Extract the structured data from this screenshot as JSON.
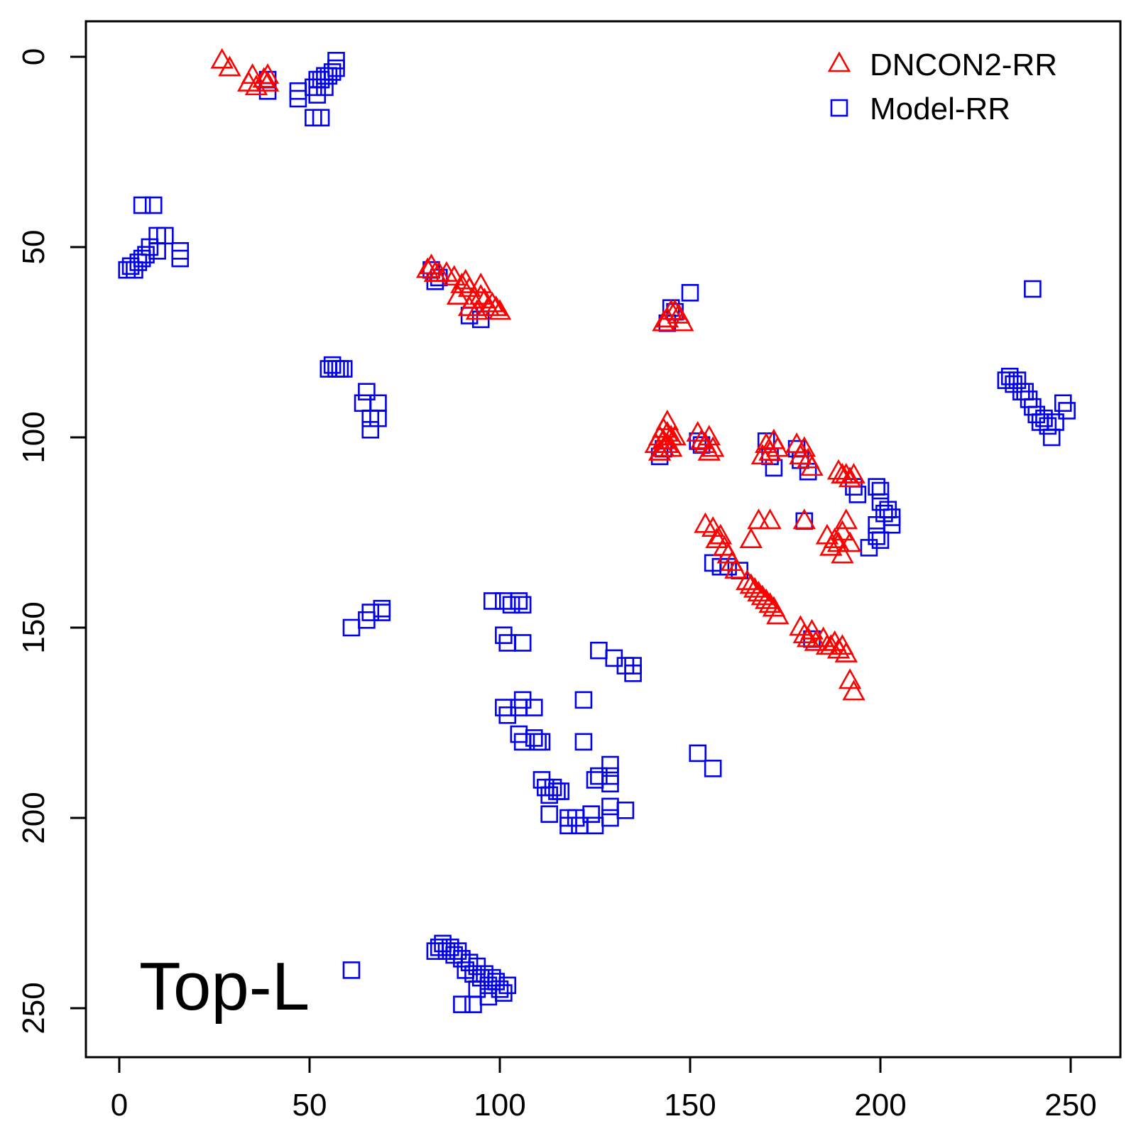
{
  "colors": {
    "dncon": "#ff0000",
    "model": "#0000ee",
    "axis": "#000000"
  },
  "legend": {
    "placement": "top-right",
    "items": [
      {
        "label": "DNCON2-RR",
        "marker": "triangle",
        "color": "#ff0000"
      },
      {
        "label": "Model-RR",
        "marker": "square",
        "color": "#0000ee"
      }
    ]
  },
  "chart_data": {
    "type": "scatter",
    "title": "",
    "xlabel": "",
    "ylabel": "",
    "annotation": "Top-L",
    "xlim": [
      -9,
      263
    ],
    "ylim": [
      -9,
      263
    ],
    "y_reversed": true,
    "grid": false,
    "x_ticks": [
      0,
      50,
      100,
      150,
      200,
      250
    ],
    "y_ticks": [
      0,
      50,
      100,
      150,
      200,
      250
    ],
    "series": [
      {
        "name": "DNCON2-RR",
        "marker": "triangle",
        "color": "#ff0000",
        "points": [
          [
            27,
            1
          ],
          [
            29,
            3
          ],
          [
            34,
            7
          ],
          [
            35,
            5
          ],
          [
            36,
            8
          ],
          [
            38,
            6
          ],
          [
            39,
            5
          ],
          [
            39,
            7
          ],
          [
            81,
            56
          ],
          [
            82,
            55
          ],
          [
            83,
            57
          ],
          [
            84,
            57
          ],
          [
            86,
            57
          ],
          [
            88,
            58
          ],
          [
            89,
            63
          ],
          [
            90,
            60
          ],
          [
            91,
            59
          ],
          [
            92,
            61
          ],
          [
            92,
            66
          ],
          [
            93,
            64
          ],
          [
            94,
            67
          ],
          [
            95,
            60
          ],
          [
            95,
            63
          ],
          [
            96,
            64
          ],
          [
            97,
            66
          ],
          [
            98,
            65
          ],
          [
            99,
            66
          ],
          [
            100,
            67
          ],
          [
            143,
            70
          ],
          [
            144,
            69
          ],
          [
            145,
            67
          ],
          [
            146,
            67
          ],
          [
            147,
            68
          ],
          [
            148,
            70
          ],
          [
            141,
            102
          ],
          [
            142,
            100
          ],
          [
            142,
            104
          ],
          [
            143,
            98
          ],
          [
            143,
            101
          ],
          [
            143,
            103
          ],
          [
            144,
            96
          ],
          [
            144,
            99
          ],
          [
            144,
            102
          ],
          [
            145,
            100
          ],
          [
            145,
            103
          ],
          [
            146,
            100
          ],
          [
            152,
            99
          ],
          [
            153,
            101
          ],
          [
            154,
            102
          ],
          [
            155,
            100
          ],
          [
            155,
            104
          ],
          [
            156,
            103
          ],
          [
            169,
            105
          ],
          [
            170,
            102
          ],
          [
            171,
            104
          ],
          [
            172,
            101
          ],
          [
            173,
            103
          ],
          [
            178,
            102
          ],
          [
            179,
            105
          ],
          [
            180,
            103
          ],
          [
            181,
            106
          ],
          [
            182,
            108
          ],
          [
            189,
            109
          ],
          [
            190,
            110
          ],
          [
            191,
            110
          ],
          [
            192,
            111
          ],
          [
            193,
            110
          ],
          [
            154,
            123
          ],
          [
            156,
            124
          ],
          [
            157,
            127
          ],
          [
            158,
            126
          ],
          [
            159,
            129
          ],
          [
            160,
            131
          ],
          [
            161,
            133
          ],
          [
            162,
            135
          ],
          [
            165,
            138
          ],
          [
            166,
            139
          ],
          [
            167,
            140
          ],
          [
            168,
            141
          ],
          [
            169,
            142
          ],
          [
            170,
            143
          ],
          [
            171,
            144
          ],
          [
            172,
            145
          ],
          [
            173,
            147
          ],
          [
            166,
            127
          ],
          [
            168,
            122
          ],
          [
            171,
            122
          ],
          [
            180,
            122
          ],
          [
            186,
            126
          ],
          [
            187,
            129
          ],
          [
            188,
            127
          ],
          [
            189,
            128
          ],
          [
            190,
            125
          ],
          [
            190,
            131
          ],
          [
            191,
            122
          ],
          [
            192,
            128
          ],
          [
            179,
            150
          ],
          [
            180,
            152
          ],
          [
            181,
            153
          ],
          [
            182,
            151
          ],
          [
            183,
            154
          ],
          [
            185,
            153
          ],
          [
            186,
            155
          ],
          [
            187,
            155
          ],
          [
            188,
            154
          ],
          [
            189,
            156
          ],
          [
            190,
            155
          ],
          [
            191,
            157
          ],
          [
            192,
            164
          ],
          [
            193,
            167
          ]
        ]
      },
      {
        "name": "Model-RR",
        "marker": "square",
        "color": "#0000ee",
        "points": [
          [
            39,
            6
          ],
          [
            39,
            9
          ],
          [
            47,
            9
          ],
          [
            47,
            11
          ],
          [
            51,
            8
          ],
          [
            52,
            6
          ],
          [
            52,
            10
          ],
          [
            53,
            6
          ],
          [
            54,
            8
          ],
          [
            54,
            5
          ],
          [
            55,
            5
          ],
          [
            56,
            4
          ],
          [
            57,
            3
          ],
          [
            57,
            1
          ],
          [
            51,
            16
          ],
          [
            53,
            16
          ],
          [
            6,
            39
          ],
          [
            9,
            39
          ],
          [
            10,
            47
          ],
          [
            12,
            47
          ],
          [
            8,
            50
          ],
          [
            10,
            51
          ],
          [
            7,
            52
          ],
          [
            6,
            53
          ],
          [
            5,
            54
          ],
          [
            3,
            55
          ],
          [
            4,
            56
          ],
          [
            2,
            56
          ],
          [
            16,
            51
          ],
          [
            16,
            53
          ],
          [
            82,
            56
          ],
          [
            83,
            59
          ],
          [
            84,
            58
          ],
          [
            92,
            68
          ],
          [
            95,
            69
          ],
          [
            144,
            70
          ],
          [
            145,
            66
          ],
          [
            146,
            67
          ],
          [
            150,
            62
          ],
          [
            55,
            82
          ],
          [
            56,
            81
          ],
          [
            57,
            82
          ],
          [
            58,
            82
          ],
          [
            59,
            82
          ],
          [
            64,
            91
          ],
          [
            65,
            88
          ],
          [
            66,
            95
          ],
          [
            66,
            98
          ],
          [
            68,
            91
          ],
          [
            68,
            95
          ],
          [
            233,
            85
          ],
          [
            234,
            84
          ],
          [
            235,
            86
          ],
          [
            236,
            85
          ],
          [
            237,
            88
          ],
          [
            238,
            88
          ],
          [
            239,
            90
          ],
          [
            240,
            92
          ],
          [
            241,
            94
          ],
          [
            242,
            96
          ],
          [
            243,
            95
          ],
          [
            244,
            97
          ],
          [
            245,
            100
          ],
          [
            246,
            96
          ],
          [
            248,
            91
          ],
          [
            249,
            93
          ],
          [
            240,
            61
          ],
          [
            142,
            105
          ],
          [
            143,
            103
          ],
          [
            152,
            101
          ],
          [
            153,
            102
          ],
          [
            170,
            101
          ],
          [
            171,
            105
          ],
          [
            172,
            108
          ],
          [
            178,
            103
          ],
          [
            179,
            106
          ],
          [
            181,
            109
          ],
          [
            193,
            113
          ],
          [
            194,
            115
          ],
          [
            199,
            113
          ],
          [
            200,
            114
          ],
          [
            200,
            117
          ],
          [
            201,
            120
          ],
          [
            202,
            119
          ],
          [
            203,
            121
          ],
          [
            203,
            123
          ],
          [
            199,
            123
          ],
          [
            200,
            127
          ],
          [
            197,
            129
          ],
          [
            199,
            126
          ],
          [
            180,
            122
          ],
          [
            156,
            133
          ],
          [
            158,
            134
          ],
          [
            160,
            134
          ],
          [
            163,
            135
          ],
          [
            61,
            150
          ],
          [
            65,
            148
          ],
          [
            66,
            146
          ],
          [
            69,
            146
          ],
          [
            69,
            145
          ],
          [
            98,
            143
          ],
          [
            101,
            143
          ],
          [
            103,
            144
          ],
          [
            105,
            143
          ],
          [
            106,
            144
          ],
          [
            101,
            152
          ],
          [
            102,
            154
          ],
          [
            106,
            154
          ],
          [
            126,
            156
          ],
          [
            130,
            158
          ],
          [
            133,
            160
          ],
          [
            135,
            160
          ],
          [
            135,
            162
          ],
          [
            182,
            153
          ],
          [
            101,
            171
          ],
          [
            102,
            173
          ],
          [
            105,
            171
          ],
          [
            106,
            169
          ],
          [
            109,
            171
          ],
          [
            122,
            169
          ],
          [
            105,
            178
          ],
          [
            106,
            180
          ],
          [
            109,
            179
          ],
          [
            110,
            180
          ],
          [
            111,
            180
          ],
          [
            122,
            180
          ],
          [
            111,
            190
          ],
          [
            112,
            192
          ],
          [
            113,
            194
          ],
          [
            114,
            192
          ],
          [
            115,
            193
          ],
          [
            116,
            193
          ],
          [
            125,
            190
          ],
          [
            126,
            189
          ],
          [
            129,
            189
          ],
          [
            129,
            186
          ],
          [
            129,
            191
          ],
          [
            152,
            183
          ],
          [
            156,
            187
          ],
          [
            113,
            199
          ],
          [
            118,
            200
          ],
          [
            118,
            202
          ],
          [
            120,
            200
          ],
          [
            121,
            202
          ],
          [
            124,
            199
          ],
          [
            125,
            202
          ],
          [
            129,
            197
          ],
          [
            129,
            200
          ],
          [
            133,
            198
          ],
          [
            83,
            235
          ],
          [
            84,
            234
          ],
          [
            85,
            233
          ],
          [
            86,
            235
          ],
          [
            87,
            234
          ],
          [
            88,
            236
          ],
          [
            89,
            235
          ],
          [
            90,
            237
          ],
          [
            91,
            240
          ],
          [
            92,
            238
          ],
          [
            93,
            241
          ],
          [
            94,
            239
          ],
          [
            95,
            242
          ],
          [
            96,
            241
          ],
          [
            97,
            244
          ],
          [
            98,
            242
          ],
          [
            99,
            243
          ],
          [
            100,
            245
          ],
          [
            101,
            246
          ],
          [
            102,
            244
          ],
          [
            97,
            247
          ],
          [
            94,
            245
          ],
          [
            90,
            249
          ],
          [
            93,
            249
          ],
          [
            61,
            240
          ]
        ]
      }
    ]
  }
}
